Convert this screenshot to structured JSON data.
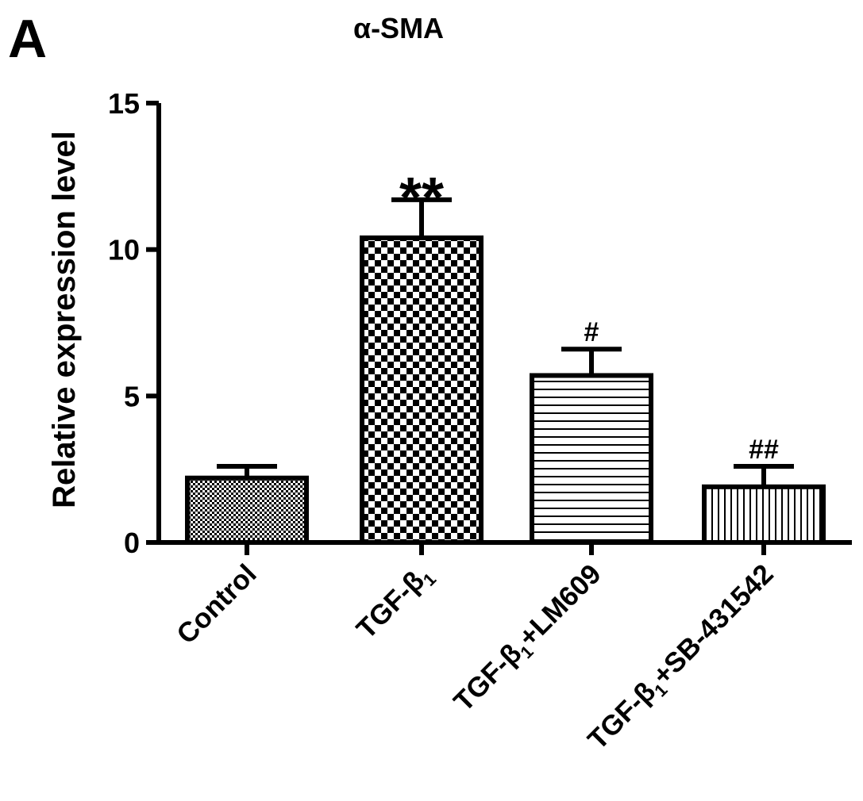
{
  "chart_data": {
    "type": "bar",
    "panel_label": "A",
    "title": "α-SMA",
    "xlabel": "",
    "ylabel": "Relative expression level",
    "ylim": [
      0,
      15
    ],
    "yticks": [
      0,
      5,
      10,
      15
    ],
    "categories": [
      {
        "base": "Control",
        "sub": "",
        "suffix": ""
      },
      {
        "base": "TGF-β",
        "sub": "1",
        "suffix": ""
      },
      {
        "base": "TGF-β",
        "sub": "1",
        "suffix": "+LM609"
      },
      {
        "base": "TGF-β",
        "sub": "1",
        "suffix": "+SB-431542"
      }
    ],
    "values": [
      2.2,
      10.4,
      5.7,
      1.9
    ],
    "errors": [
      0.4,
      1.3,
      0.9,
      0.7
    ],
    "annotations": [
      "",
      "**",
      "#",
      "##"
    ],
    "patterns": [
      "dots",
      "checkerboard",
      "horizontal-lines",
      "vertical-lines"
    ],
    "grid": false,
    "legend": "none",
    "colors": {
      "ink": "#000000",
      "fill": "#ffffff"
    }
  }
}
